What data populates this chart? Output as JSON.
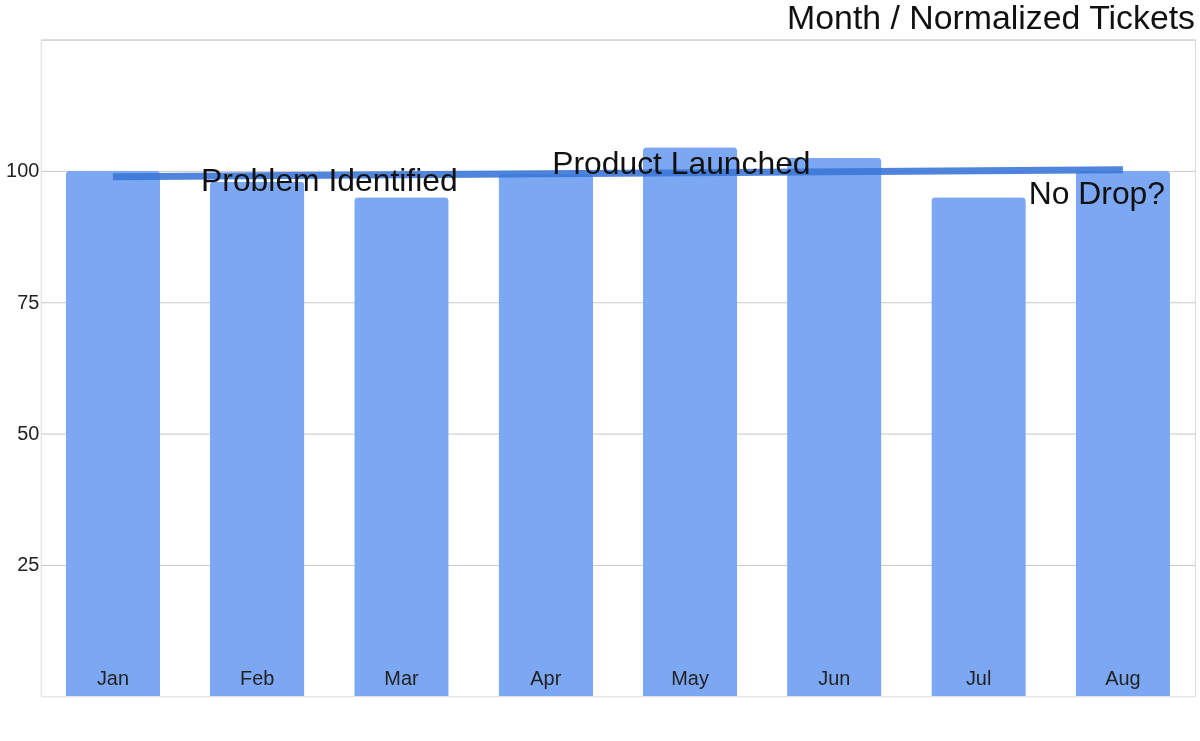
{
  "chart_data": {
    "type": "bar",
    "title": "Month / Normalized Tickets",
    "categories": [
      "Jan",
      "Feb",
      "Mar",
      "Apr",
      "May",
      "Jun",
      "Jul",
      "Aug"
    ],
    "series": [
      {
        "color": "#7ba7f3",
        "values": [
          100,
          98,
          95,
          99.5,
          104.5,
          102.5,
          95,
          100
        ]
      },
      {
        "type": "line",
        "color": "#3c78d8",
        "x": [
          "Jan",
          "Aug"
        ],
        "values": [
          98.9,
          100.2
        ]
      }
    ],
    "ylim": [
      0,
      125
    ],
    "yticks": [
      25,
      50,
      75,
      100,
      {
        "value": 125,
        "label": null
      }
    ],
    "grid": "y",
    "annotations": [
      "Problem Identified",
      "Product Launched",
      "No Drop?"
    ]
  }
}
